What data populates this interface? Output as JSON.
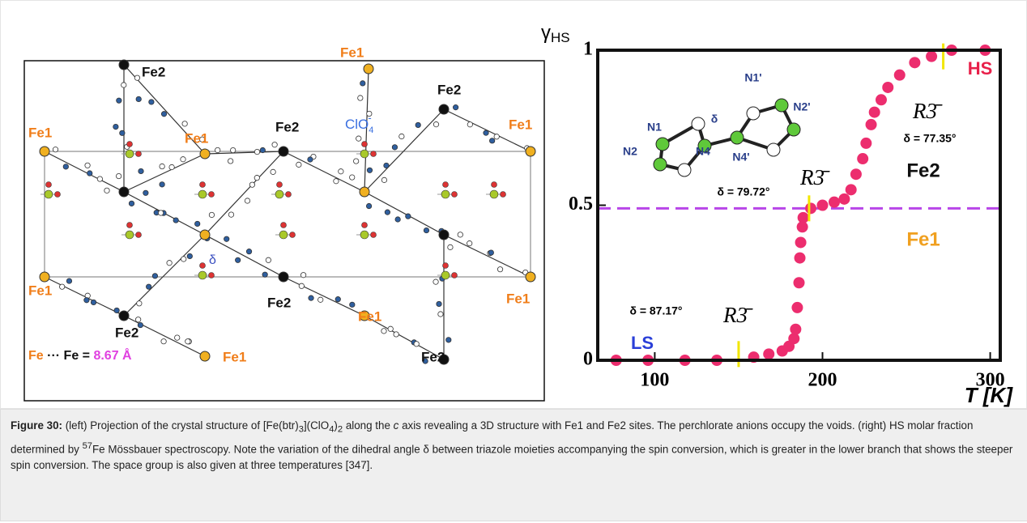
{
  "structure": {
    "labels": [
      "Fe2",
      "Fe1",
      "Fe1",
      "Fe1",
      "Fe2",
      "Fe2",
      "Fe1",
      "Fe1",
      "Fe2",
      "Fe1",
      "Fe1",
      "Fe2",
      "Fe2",
      "Fe1"
    ],
    "anion_label": "ClO",
    "anion_sub": "4",
    "anion_sup": "-",
    "angle_label": "δ",
    "distance_label": [
      "Fe",
      " ··· Fe = ",
      "8.67 Å"
    ]
  },
  "chart_data": {
    "type": "scatter",
    "y_label": "γ",
    "y_label_sub": "HS",
    "x_label": "T [K]",
    "x": [
      77,
      96,
      118,
      137,
      159,
      168,
      176,
      180,
      183,
      184,
      185,
      186,
      186.5,
      187,
      188,
      188.5,
      193,
      200,
      207,
      213,
      217,
      220,
      224,
      226,
      229,
      231,
      235,
      239,
      246,
      255,
      265,
      277,
      297
    ],
    "values": [
      0,
      0,
      0,
      0,
      0.01,
      0.02,
      0.03,
      0.045,
      0.07,
      0.1,
      0.17,
      0.25,
      0.33,
      0.38,
      0.43,
      0.46,
      0.49,
      0.5,
      0.51,
      0.52,
      0.55,
      0.6,
      0.65,
      0.7,
      0.76,
      0.8,
      0.84,
      0.88,
      0.92,
      0.96,
      0.98,
      1,
      1
    ],
    "color": "#ec2d6e",
    "xlim": [
      66,
      306
    ],
    "ylim": [
      0,
      1
    ],
    "xticks": [
      100,
      200,
      300
    ],
    "yticks": [
      0,
      0.5,
      1
    ],
    "fraction_line": 0.49,
    "fraction_line_color": "#b845e8",
    "space_group_marks": {
      "x": [
        150,
        192,
        272
      ],
      "y": [
        0.02,
        0.49,
        0.98
      ],
      "color": "#f2e600"
    },
    "annotations": [
      "HS",
      "LS",
      "Fe2",
      "Fe1",
      "R3̄",
      "R3̄",
      "R3̄",
      "δ = 77.35°",
      "δ = 79.72°",
      "δ = 87.17°"
    ],
    "inset_labels": [
      "N1",
      "N2",
      "N4",
      "δ",
      "N4'",
      "N1'",
      "N2'"
    ]
  },
  "caption": [
    "Figure 30:",
    " (left) Projection of the crystal structure of [Fe(btr)",
    "3",
    "](ClO",
    "4",
    ")",
    "2",
    " along the ",
    "c",
    " axis revealing a 3D structure with Fe1 and Fe2 sites. The perchlorate anions occupy the voids. (right) HS molar fraction determined by ",
    "57",
    "Fe Mössbauer spectroscopy. Note the variation of the dihedral angle δ between triazole moieties accompanying the spin conversion, which is greater in the lower branch that shows the steeper spin conversion. The space group is also given at three temperatures [347]."
  ]
}
